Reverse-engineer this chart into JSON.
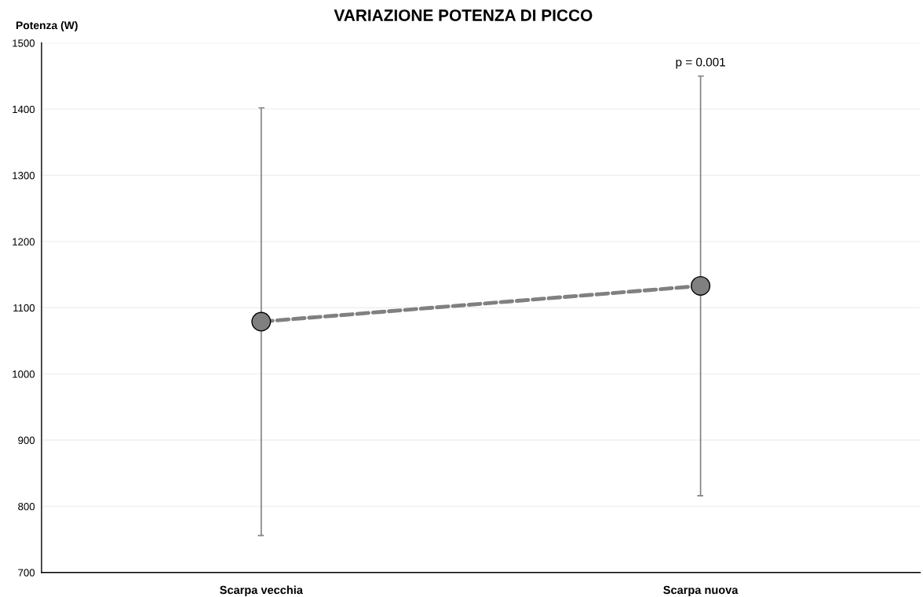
{
  "chart_data": {
    "type": "line",
    "title": "VARIAZIONE POTENZA DI PICCO",
    "ylabel": "Potenza (W)",
    "categories": [
      "Scarpa vecchia",
      "Scarpa nuova"
    ],
    "series": [
      {
        "color": "#808080",
        "values": [
          1079,
          1133
        ],
        "errors": [
          323,
          317
        ]
      }
    ],
    "marker": "circle",
    "line_style": "dashed",
    "ylim": [
      700,
      1500
    ],
    "yticks": [
      700,
      800,
      900,
      1000,
      1100,
      1200,
      1300,
      1400,
      1500
    ],
    "grid": "y",
    "annotations": [
      "p = 0.001"
    ]
  }
}
